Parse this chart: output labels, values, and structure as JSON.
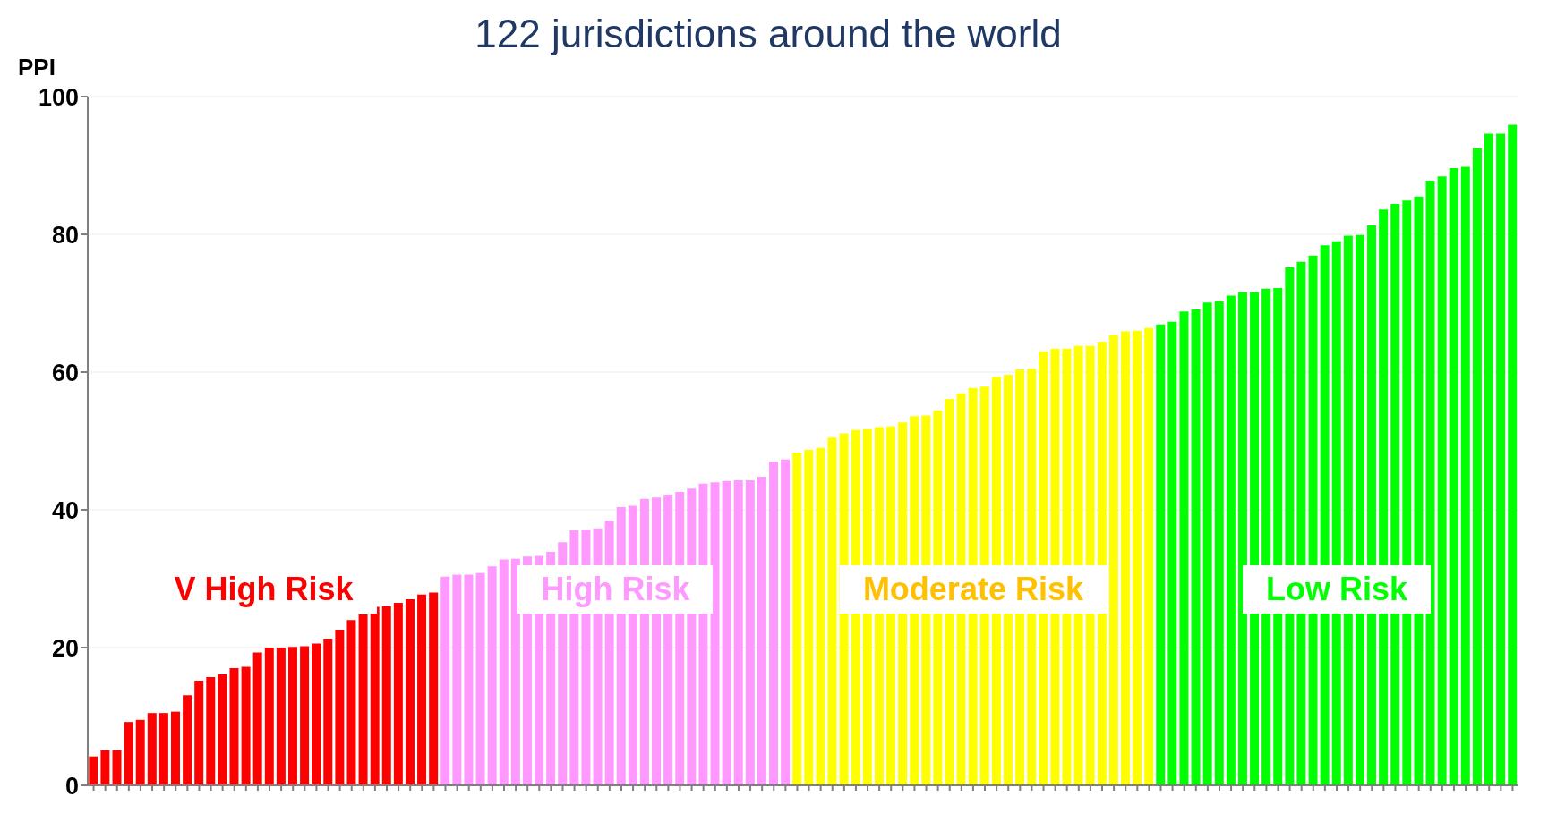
{
  "chart_data": {
    "type": "bar",
    "title": "122 jurisdictions around the world",
    "ylabel": "PPI",
    "categories": [
      null,
      null,
      null,
      null,
      null,
      null,
      null,
      null,
      null,
      null,
      null,
      null,
      null,
      null,
      null,
      null,
      null,
      null,
      null,
      null,
      null,
      null,
      null,
      null,
      null,
      null,
      null,
      null,
      null,
      null,
      null,
      null,
      null,
      null,
      null,
      null,
      null,
      null,
      null,
      null,
      null,
      null,
      null,
      null,
      null,
      null,
      null,
      null,
      null,
      null,
      null,
      null,
      null,
      null,
      null,
      null,
      null,
      null,
      null,
      null,
      null,
      null,
      null,
      null,
      null,
      null,
      null,
      null,
      null,
      null,
      null,
      null,
      null,
      null,
      null,
      null,
      null,
      null,
      null,
      null,
      null,
      null,
      null,
      null,
      null,
      null,
      null,
      null,
      null,
      null,
      null,
      null,
      null,
      null,
      null,
      null,
      null,
      null,
      null,
      null,
      null,
      null,
      null,
      null,
      null,
      null,
      null,
      null,
      null,
      null,
      null,
      null,
      null,
      null,
      null,
      null,
      null,
      null,
      null,
      null,
      null,
      null
    ],
    "series": [
      {
        "name": "V High Risk",
        "color": "#ff0000",
        "values": [
          4.2,
          5.1,
          5.1,
          9.2,
          9.5,
          10.5,
          10.5,
          10.7,
          13.1,
          15.2,
          15.7,
          16.1,
          17.0,
          17.2,
          19.3,
          20.0,
          20.0,
          20.1,
          20.2,
          20.6,
          21.3,
          22.6,
          24.0,
          24.8,
          25.9,
          26.0,
          26.5,
          27.0,
          27.7,
          28.0,
          null,
          null,
          null,
          null,
          null,
          null,
          null,
          null,
          null,
          null,
          null,
          null,
          null,
          null,
          null,
          null,
          null,
          null,
          null,
          null,
          null,
          null,
          null,
          null,
          null,
          null,
          null,
          null,
          null,
          null,
          null,
          null,
          null,
          null,
          null,
          null,
          null,
          null,
          null,
          null,
          null,
          null,
          null,
          null,
          null,
          null,
          null,
          null,
          null,
          null,
          null,
          null,
          null,
          null,
          null,
          null,
          null,
          null,
          null,
          null,
          null,
          null,
          null,
          null,
          null,
          null,
          null,
          null,
          null,
          null,
          null,
          null,
          null,
          null,
          null,
          null,
          null,
          null,
          null,
          null,
          null,
          null,
          null,
          null,
          null,
          null,
          null,
          null,
          null,
          null,
          null,
          null
        ]
      },
      {
        "name": "High Risk",
        "color": "#ff99ff",
        "values": [
          null,
          null,
          null,
          null,
          null,
          null,
          null,
          null,
          null,
          null,
          null,
          null,
          null,
          null,
          null,
          null,
          null,
          null,
          null,
          null,
          null,
          null,
          null,
          null,
          null,
          null,
          null,
          null,
          null,
          null,
          30.3,
          30.6,
          30.6,
          30.8,
          31.8,
          32.8,
          32.9,
          33.2,
          33.3,
          33.9,
          35.3,
          37.0,
          37.1,
          37.3,
          38.4,
          40.4,
          40.6,
          41.6,
          41.8,
          42.2,
          42.6,
          43.1,
          43.8,
          44.0,
          44.2,
          44.3,
          44.3,
          44.8,
          47.0,
          47.3,
          null,
          null,
          null,
          null,
          null,
          null,
          null,
          null,
          null,
          null,
          null,
          null,
          null,
          null,
          null,
          null,
          null,
          null,
          null,
          null,
          null,
          null,
          null,
          null,
          null,
          null,
          null,
          null,
          null,
          null,
          null,
          null,
          null,
          null,
          null,
          null,
          null,
          null,
          null,
          null,
          null,
          null,
          null,
          null,
          null,
          null,
          null,
          null,
          null,
          null,
          null,
          null,
          null,
          null,
          null,
          null,
          null,
          null,
          null,
          null,
          null,
          null
        ]
      },
      {
        "name": "Moderate Risk",
        "color": "#ffff00",
        "values": [
          null,
          null,
          null,
          null,
          null,
          null,
          null,
          null,
          null,
          null,
          null,
          null,
          null,
          null,
          null,
          null,
          null,
          null,
          null,
          null,
          null,
          null,
          null,
          null,
          null,
          null,
          null,
          null,
          null,
          null,
          null,
          null,
          null,
          null,
          null,
          null,
          null,
          null,
          null,
          null,
          null,
          null,
          null,
          null,
          null,
          null,
          null,
          null,
          null,
          null,
          null,
          null,
          null,
          null,
          null,
          null,
          null,
          null,
          null,
          null,
          48.3,
          48.7,
          49.0,
          50.5,
          51.1,
          51.6,
          51.7,
          52.0,
          52.1,
          52.7,
          53.6,
          53.7,
          54.4,
          56.1,
          56.9,
          57.7,
          57.9,
          59.3,
          59.6,
          60.4,
          60.5,
          63.0,
          63.4,
          63.4,
          63.8,
          63.8,
          64.4,
          65.4,
          65.9,
          66.0,
          66.4,
          null,
          null,
          null,
          null,
          null,
          null,
          null,
          null,
          null,
          null,
          null,
          null,
          null,
          null,
          null,
          null,
          null,
          null,
          null,
          null,
          null,
          null,
          null,
          null,
          null,
          null,
          null,
          null,
          null,
          null,
          null
        ]
      },
      {
        "name": "Low Risk",
        "color": "#00ff00",
        "values": [
          null,
          null,
          null,
          null,
          null,
          null,
          null,
          null,
          null,
          null,
          null,
          null,
          null,
          null,
          null,
          null,
          null,
          null,
          null,
          null,
          null,
          null,
          null,
          null,
          null,
          null,
          null,
          null,
          null,
          null,
          null,
          null,
          null,
          null,
          null,
          null,
          null,
          null,
          null,
          null,
          null,
          null,
          null,
          null,
          null,
          null,
          null,
          null,
          null,
          null,
          null,
          null,
          null,
          null,
          null,
          null,
          null,
          null,
          null,
          null,
          null,
          null,
          null,
          null,
          null,
          null,
          null,
          null,
          null,
          null,
          null,
          null,
          null,
          null,
          null,
          null,
          null,
          null,
          null,
          null,
          null,
          null,
          null,
          null,
          null,
          null,
          null,
          null,
          null,
          null,
          null,
          66.9,
          67.3,
          68.8,
          69.1,
          70.1,
          70.3,
          71.1,
          71.6,
          71.6,
          72.1,
          72.2,
          75.2,
          76.0,
          76.9,
          78.4,
          79.0,
          79.8,
          79.9,
          81.3,
          83.6,
          84.4,
          84.9,
          85.5,
          87.8,
          88.4,
          89.6,
          89.8,
          92.5,
          94.6,
          94.6,
          95.9
        ]
      }
    ],
    "ylim": [
      0,
      100
    ],
    "yticks": [
      0,
      20,
      40,
      60,
      80,
      100
    ],
    "grid": "y"
  }
}
